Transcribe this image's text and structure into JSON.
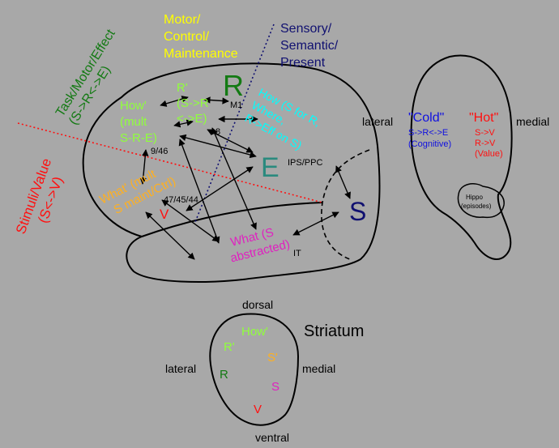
{
  "colors": {
    "background": "#a8a8a8",
    "yellow": "#ffff00",
    "green": "#137a13",
    "light_green": "#90ff3c",
    "cyan": "#00ffff",
    "teal": "#2a8a7e",
    "navy": "#101070",
    "blue": "#1010e0",
    "red": "#ff1010",
    "orange": "#ffb020",
    "magenta": "#e020c0",
    "black": "#000000"
  },
  "axes": {
    "task_line1": "Task/Motor/Effect",
    "task_line2": "(S->R<->E)",
    "motor_line1": "Motor/",
    "motor_line2": "Control/",
    "motor_line3": "Maintenance",
    "sensory_line1": "Sensory/",
    "sensory_line2": "Semantic/",
    "sensory_line3": "Present",
    "stimuli_line1": "Stimuli/Value",
    "stimuli_line2": "(S<->V)"
  },
  "cortex": {
    "R_big": "R",
    "M1": "M1",
    "R_prime_line1": "R'",
    "R_prime_line2": "(S->R",
    "R_prime_line3": "<->E)",
    "area_8": "8",
    "how_prime_line1": "How'",
    "how_prime_line2": "(mult",
    "how_prime_line3": "S-R-E)",
    "area_9_46": "9/46",
    "how_line1": "How (S for R,",
    "how_line2": "Where,",
    "how_line3": "R->Eff on S)",
    "E_big": "E",
    "ips_ppc": "IPS/PPC",
    "what_prime_line1": "What' (mult",
    "what_prime_line2": "S maint/Ctrl)",
    "area_47": "47/45/44",
    "V": "V",
    "S_big": "S",
    "what_line1": "What (S",
    "what_line2": "abstracted)",
    "IT": "IT"
  },
  "medial_view": {
    "lateral": "lateral",
    "medial": "medial",
    "cold_title": "\"Cold\"",
    "cold_line1": "S->R<->E",
    "cold_line2": "(Cognitive)",
    "hot_title": "\"Hot\"",
    "hot_line1": "S->V",
    "hot_line2": "R->V",
    "hot_line3": "(Value)",
    "hippo_line1": "Hippo",
    "hippo_line2": "(episodes)"
  },
  "striatum": {
    "title": "Striatum",
    "dorsal": "dorsal",
    "ventral": "ventral",
    "lateral": "lateral",
    "medial": "medial",
    "how_prime": "How'",
    "R_prime": "R'",
    "S_prime": "S'",
    "R": "R",
    "S": "S",
    "V": "V"
  }
}
